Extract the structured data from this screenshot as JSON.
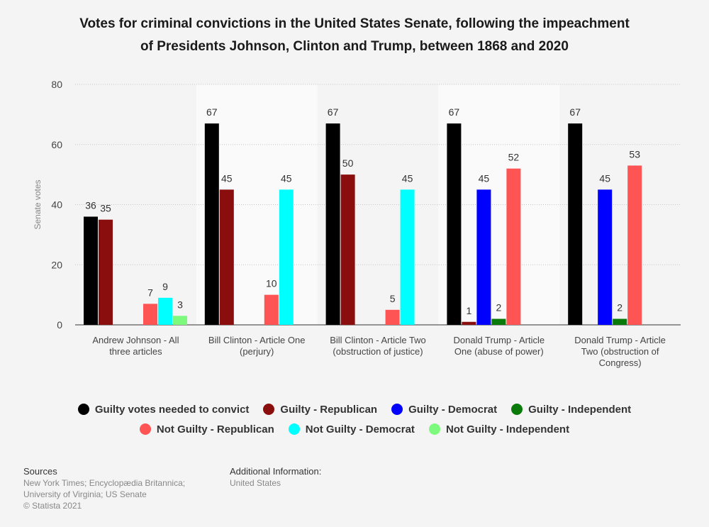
{
  "title": {
    "line1": "Votes for criminal convictions in the United States Senate, following the impeachment",
    "line2": "of Presidents Johnson, Clinton and Trump, between 1868 and 2020"
  },
  "chart_data": {
    "type": "bar",
    "ylabel": "Senate votes",
    "xlabel": "",
    "ylim": [
      0,
      80
    ],
    "yticks": [
      0,
      20,
      40,
      60,
      80
    ],
    "grid": true,
    "legend_position": "bottom",
    "categories": [
      [
        "Andrew Johnson - All",
        "three articles"
      ],
      [
        "Bill Clinton - Article One",
        "(perjury)"
      ],
      [
        "Bill Clinton - Article Two",
        "(obstruction of justice)"
      ],
      [
        "Donald Trump - Article",
        "One (abuse of power)"
      ],
      [
        "Donald Trump - Article",
        "Two (obstruction of",
        "Congress)"
      ]
    ],
    "series": [
      {
        "name": "Guilty votes needed to convict",
        "color": "#000000",
        "values": [
          36,
          67,
          67,
          67,
          67
        ]
      },
      {
        "name": "Guilty - Republican",
        "color": "#8b0e0e",
        "values": [
          35,
          45,
          50,
          1,
          null
        ]
      },
      {
        "name": "Guilty - Democrat",
        "color": "#0000ff",
        "values": [
          null,
          null,
          null,
          45,
          45
        ]
      },
      {
        "name": "Guilty - Independent",
        "color": "#0a7a0a",
        "values": [
          null,
          null,
          null,
          2,
          2
        ]
      },
      {
        "name": "Not Guilty - Republican",
        "color": "#ff5454",
        "values": [
          7,
          10,
          5,
          52,
          53
        ]
      },
      {
        "name": "Not Guilty - Democrat",
        "color": "#00ffff",
        "values": [
          9,
          45,
          45,
          null,
          null
        ]
      },
      {
        "name": "Not Guilty - Independent",
        "color": "#7dfa7d",
        "values": [
          3,
          null,
          null,
          null,
          null
        ]
      }
    ]
  },
  "footer": {
    "sources_heading": "Sources",
    "sources_line1": "New York Times; Encyclopædia Britannica;",
    "sources_line2": "University of Virginia; US Senate",
    "sources_line3": "© Statista 2021",
    "additional_heading": "Additional Information:",
    "additional_value": "United States"
  }
}
